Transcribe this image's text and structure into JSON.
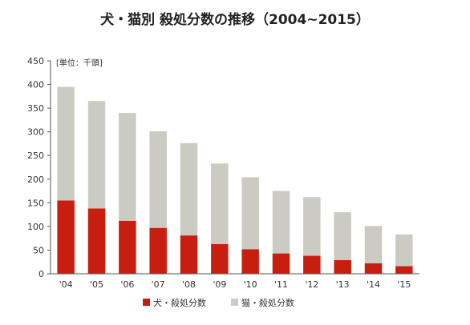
{
  "chart_data": {
    "type": "bar",
    "stacked": true,
    "title": "犬・猫別 殺処分数の推移（2004~2015）",
    "unit_label": "[単位：千頭]",
    "categories": [
      "'04",
      "'05",
      "'06",
      "'07",
      "'08",
      "'09",
      "'10",
      "'11",
      "'12",
      "'13",
      "'14",
      "'15"
    ],
    "series": [
      {
        "name": "犬・殺処分数",
        "color": "#c81e0f",
        "values": [
          155,
          138,
          112,
          97,
          81,
          63,
          52,
          43,
          38,
          29,
          22,
          16
        ]
      },
      {
        "name": "猫・殺処分数",
        "color": "#cbcbc3",
        "values": [
          240,
          227,
          228,
          204,
          195,
          170,
          152,
          132,
          124,
          101,
          79,
          67
        ]
      }
    ],
    "yticks": [
      0,
      50,
      100,
      150,
      200,
      250,
      300,
      350,
      400,
      450
    ],
    "ylim": [
      0,
      450
    ],
    "grid": false,
    "legend_position": "bottom"
  }
}
